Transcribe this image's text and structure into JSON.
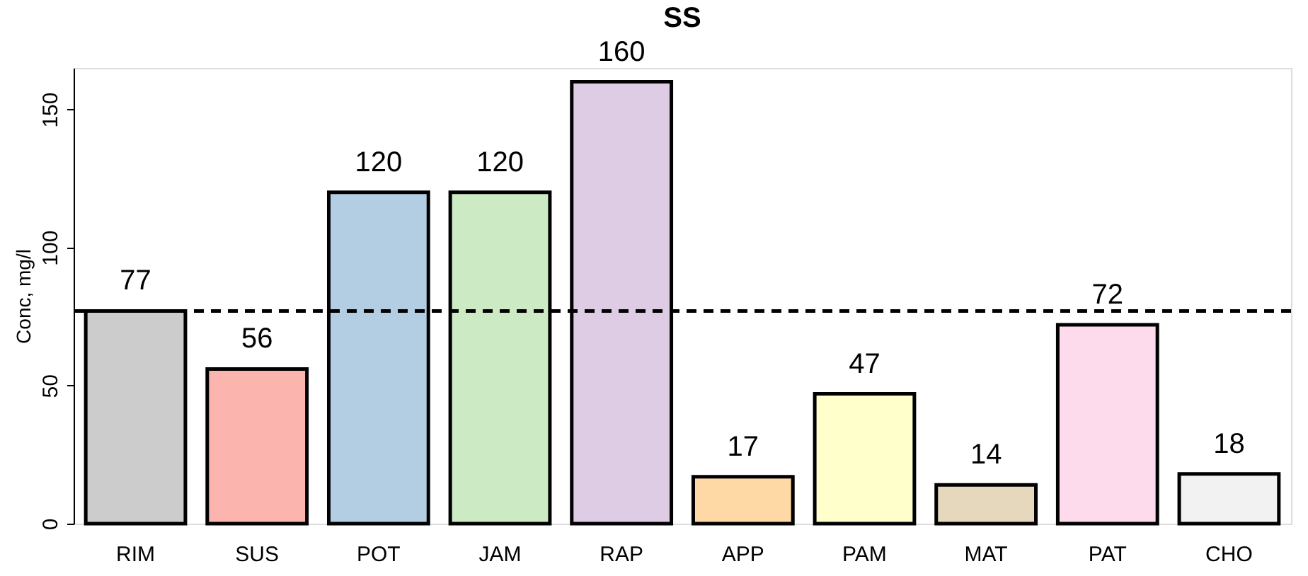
{
  "chart_data": {
    "type": "bar",
    "title": "SS",
    "ylabel": "Conc, mg/l",
    "categories": [
      "RIM",
      "SUS",
      "POT",
      "JAM",
      "RAP",
      "APP",
      "PAM",
      "MAT",
      "PAT",
      "CHO"
    ],
    "values": [
      77,
      56,
      120,
      120,
      160,
      17,
      47,
      14,
      72,
      18
    ],
    "data_labels": true,
    "colors": [
      "#cccccc",
      "#fbb4ae",
      "#b3cde3",
      "#ccebc5",
      "#decbe4",
      "#fed9a6",
      "#ffffcc",
      "#e5d8bd",
      "#fddaec",
      "#f2f2f2"
    ],
    "ylim": [
      0,
      165
    ],
    "yticks": [
      0,
      50,
      100,
      150
    ],
    "ref_lines": [
      {
        "axis": "y",
        "value": 77,
        "line_style": "dashed",
        "color": "#000000"
      }
    ],
    "grid": false
  }
}
